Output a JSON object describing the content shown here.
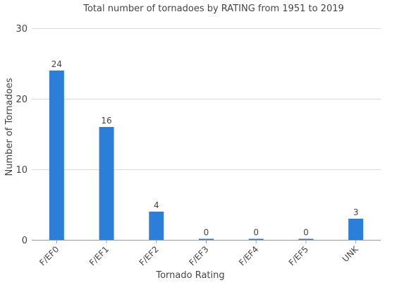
{
  "chart_data": {
    "type": "bar",
    "title": "Total number of tornadoes by RATING from 1951 to 2019",
    "xlabel": "Tornado Rating",
    "ylabel": "Number of Tornadoes",
    "categories": [
      "F/EF0",
      "F/EF1",
      "F/EF2",
      "F/EF3",
      "F/EF4",
      "F/EF5",
      "UNK"
    ],
    "values": [
      24,
      16,
      4,
      0,
      0,
      0,
      3
    ],
    "data_labels": [
      "24",
      "16",
      "4",
      "0",
      "0",
      "0",
      "3"
    ],
    "ylim": [
      0,
      30
    ],
    "yticks": [
      "0",
      "10",
      "20",
      "30"
    ],
    "grid": true,
    "legend": "none",
    "bar_color": "#2b7fd9"
  }
}
